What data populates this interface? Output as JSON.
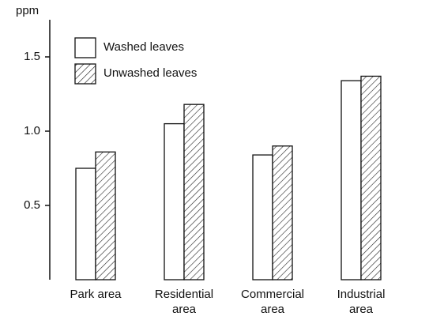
{
  "chart_data": {
    "type": "bar",
    "y_label": "ppm",
    "categories": [
      [
        "Park area"
      ],
      [
        "Residential",
        "area"
      ],
      [
        "Commercial",
        "area"
      ],
      [
        "Industrial",
        "area"
      ]
    ],
    "series": [
      {
        "name": "Washed leaves",
        "color": "#ffffff",
        "pattern": "none",
        "values": [
          0.75,
          1.05,
          0.84,
          1.34
        ]
      },
      {
        "name": "Unwashed leaves",
        "color": "#ffffff",
        "pattern": "hatch",
        "values": [
          0.86,
          1.18,
          0.9,
          1.37
        ]
      }
    ],
    "ylim": [
      0,
      1.75
    ],
    "yticks": [
      0.5,
      {
        "value": 1,
        "label": "1.0"
      },
      1.5
    ],
    "grid": false,
    "legend": "upper left"
  }
}
